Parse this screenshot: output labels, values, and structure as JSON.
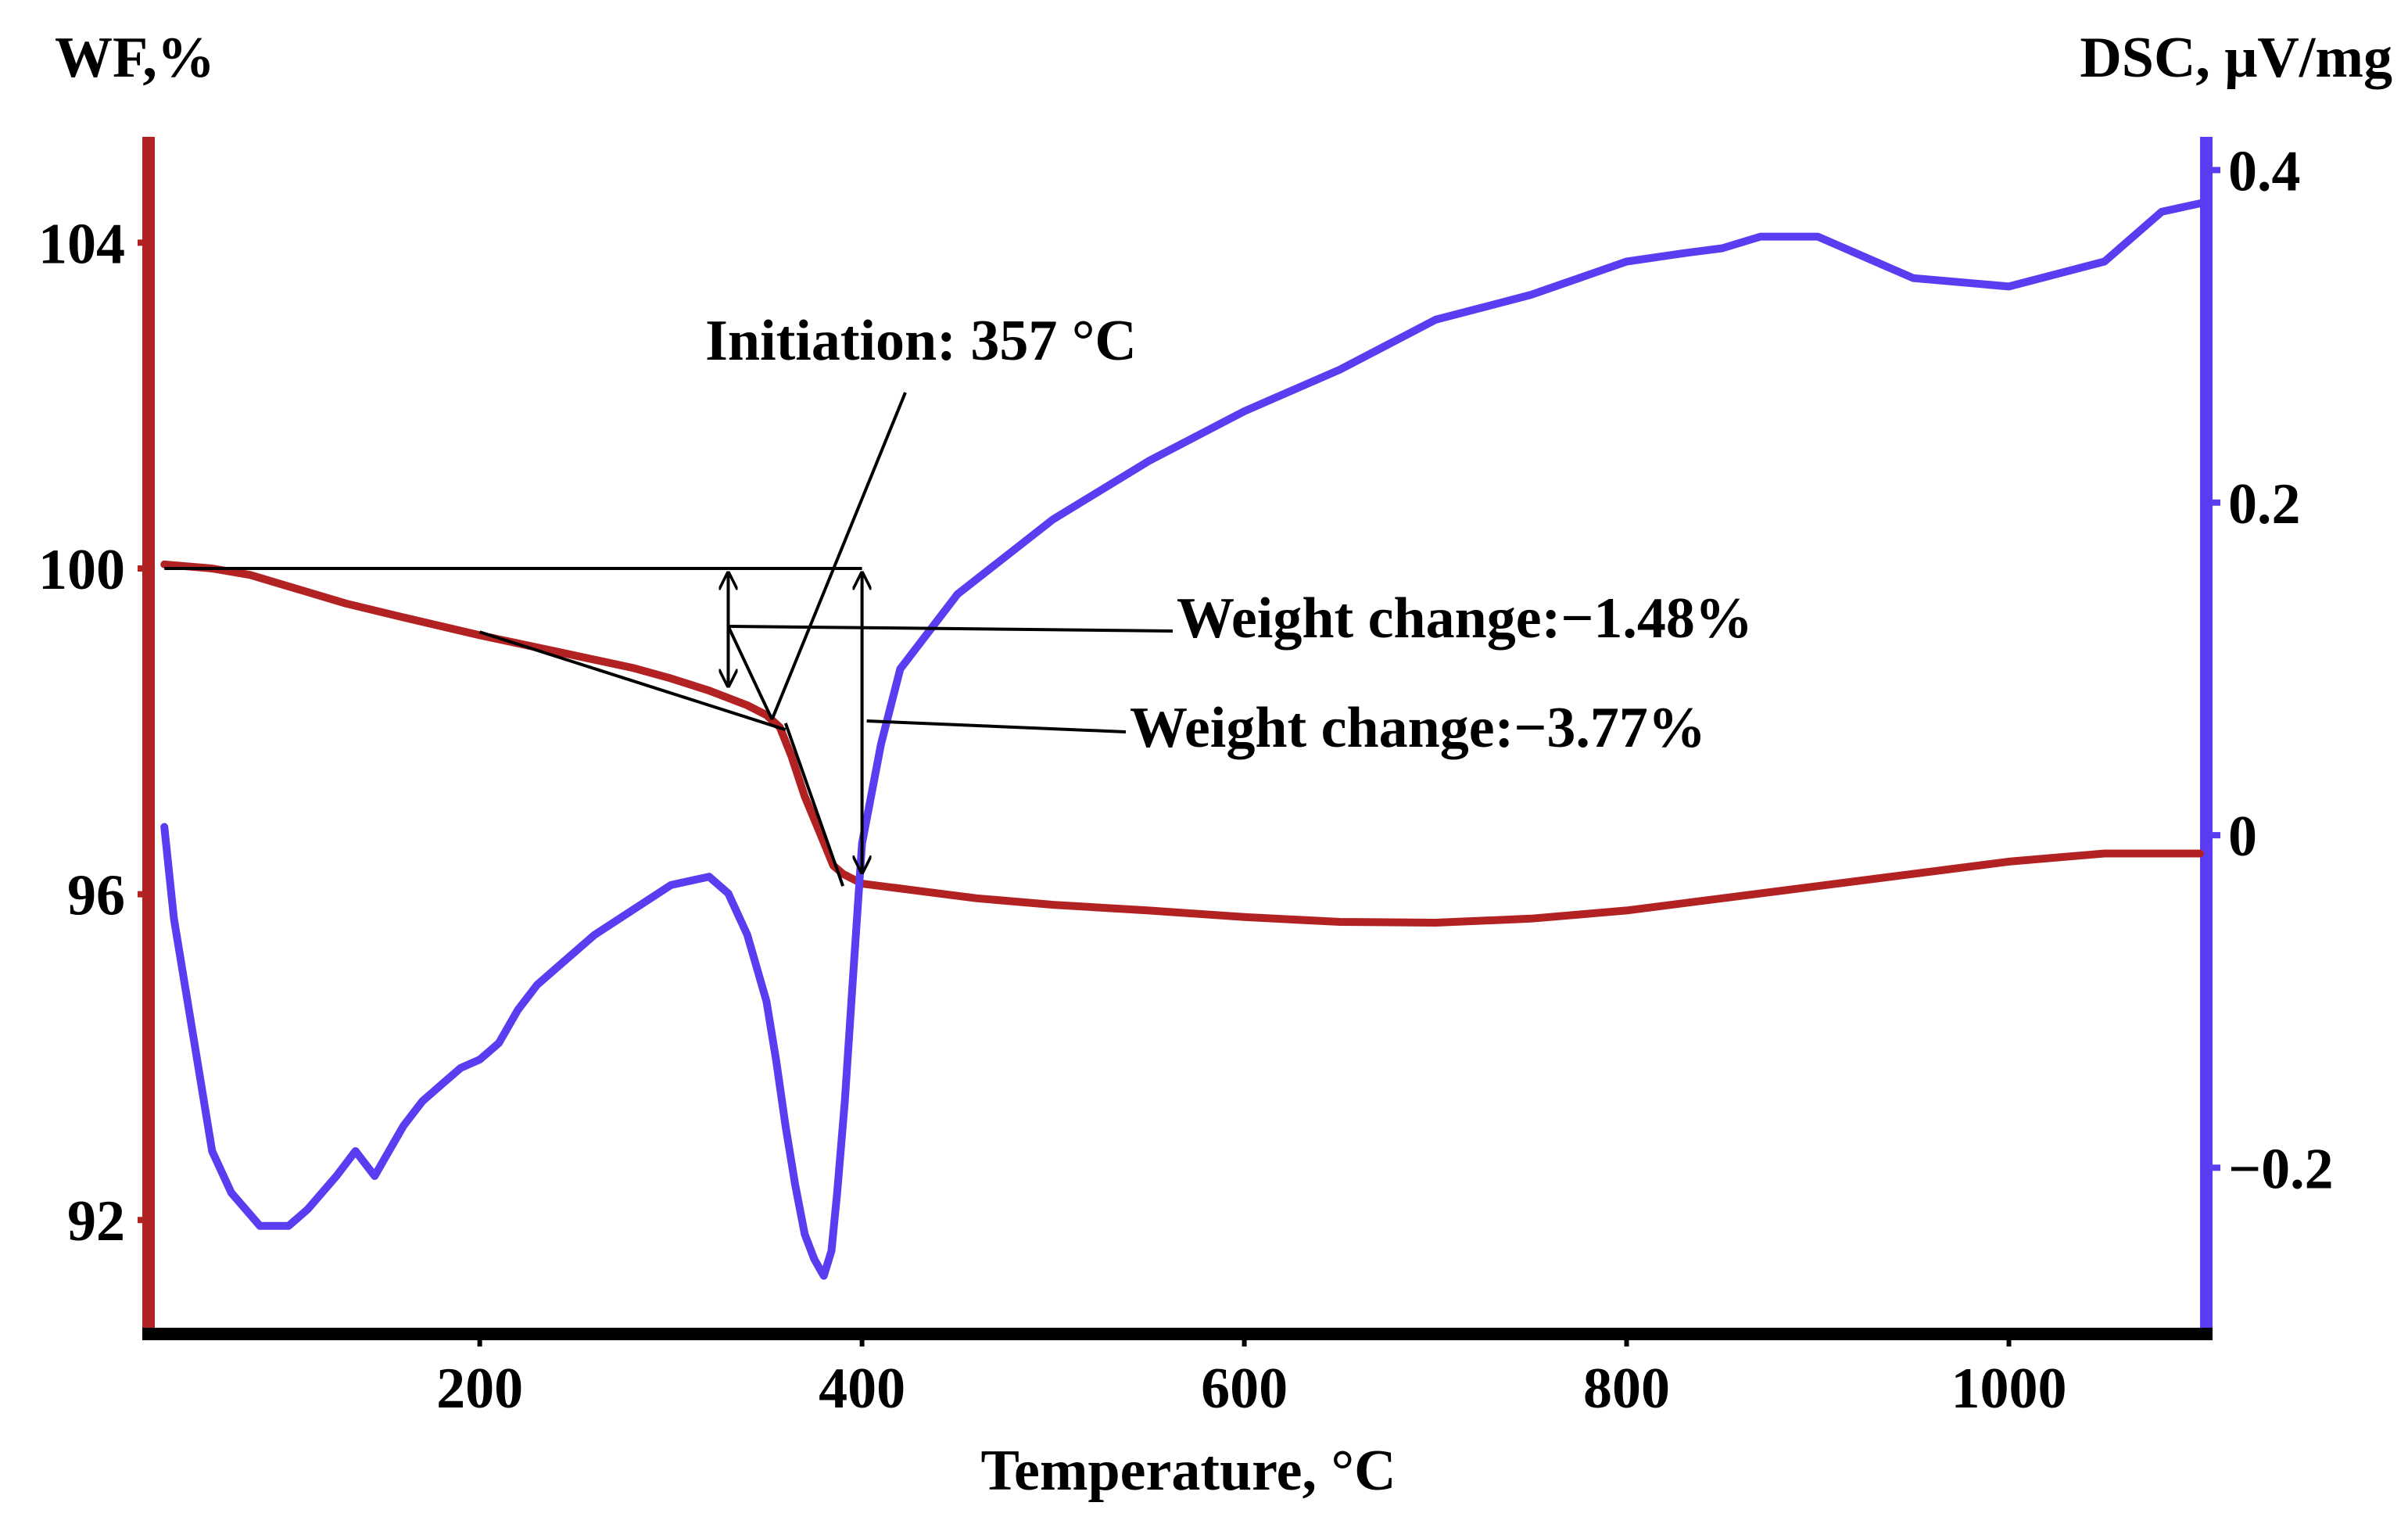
{
  "chart_data": {
    "type": "line",
    "title": "",
    "xlabel": "Temperature, °C",
    "ylabel_left": "WF,%",
    "ylabel_right": "DSC, μV/mg",
    "xlim": [
      30,
      1100
    ],
    "ylim_left": [
      90.6,
      105.3
    ],
    "ylim_right": [
      -0.3,
      0.42
    ],
    "x_ticks": [
      200,
      400,
      600,
      800,
      1000
    ],
    "y_left_ticks": [
      92,
      96,
      100,
      104
    ],
    "y_right_ticks": [
      -0.2,
      0,
      0.2,
      0.4
    ],
    "x_tick_labels": [
      "200",
      "400",
      "600",
      "800",
      "1000"
    ],
    "y_left_tick_labels": [
      "92",
      "96",
      "100",
      "104"
    ],
    "y_right_tick_labels": [
      "−0.2",
      "0",
      "0.2",
      "0.4"
    ],
    "colors": {
      "wf": "#b22222",
      "dsc": "#5b3cf0",
      "axis_left": "#b22222",
      "axis_right": "#5b3cf0",
      "annotation": "#000000"
    },
    "series": [
      {
        "name": "WF",
        "axis": "left",
        "x": [
          35,
          60,
          80,
          100,
          130,
          160,
          200,
          240,
          280,
          300,
          320,
          340,
          350,
          357,
          363,
          370,
          378,
          385,
          390,
          400,
          430,
          460,
          500,
          550,
          600,
          650,
          700,
          750,
          800,
          850,
          900,
          950,
          1000,
          1050,
          1100
        ],
        "values": [
          100.05,
          100.0,
          99.92,
          99.78,
          99.57,
          99.4,
          99.18,
          98.98,
          98.78,
          98.65,
          98.5,
          98.32,
          98.2,
          98.05,
          97.7,
          97.2,
          96.75,
          96.35,
          96.25,
          96.13,
          96.04,
          95.95,
          95.87,
          95.8,
          95.72,
          95.66,
          95.65,
          95.7,
          95.8,
          95.95,
          96.1,
          96.25,
          96.4,
          96.5,
          96.5
        ]
      },
      {
        "name": "DSC",
        "axis": "right",
        "x": [
          35,
          40,
          50,
          60,
          70,
          85,
          100,
          110,
          125,
          135,
          145,
          150,
          160,
          170,
          180,
          190,
          200,
          210,
          220,
          230,
          240,
          260,
          280,
          300,
          320,
          330,
          340,
          350,
          355,
          360,
          365,
          370,
          375,
          380,
          384,
          387,
          391,
          395,
          400,
          410,
          420,
          450,
          500,
          550,
          600,
          650,
          700,
          750,
          800,
          830,
          850,
          870,
          900,
          950,
          1000,
          1050,
          1080,
          1100
        ],
        "values": [
          0.005,
          -0.05,
          -0.12,
          -0.19,
          -0.215,
          -0.235,
          -0.235,
          -0.225,
          -0.205,
          -0.19,
          -0.205,
          -0.195,
          -0.175,
          -0.16,
          -0.15,
          -0.14,
          -0.135,
          -0.125,
          -0.105,
          -0.09,
          -0.08,
          -0.06,
          -0.045,
          -0.03,
          -0.025,
          -0.035,
          -0.06,
          -0.1,
          -0.135,
          -0.175,
          -0.21,
          -0.24,
          -0.255,
          -0.265,
          -0.25,
          -0.215,
          -0.16,
          -0.09,
          -0.005,
          0.055,
          0.1,
          0.145,
          0.19,
          0.225,
          0.255,
          0.28,
          0.31,
          0.325,
          0.345,
          0.35,
          0.353,
          0.36,
          0.36,
          0.335,
          0.33,
          0.345,
          0.375,
          0.38
        ]
      }
    ],
    "annotations": [
      {
        "id": "initiation",
        "text": "Initiation: 357 °C",
        "x": 357
      },
      {
        "id": "wc1",
        "text": "Weight change:−1.48%",
        "x": 330,
        "from": 100.0,
        "to": 98.52
      },
      {
        "id": "wc2",
        "text": "Weight change:−3.77%",
        "x": 400,
        "from": 100.0,
        "to": 96.23
      }
    ]
  }
}
